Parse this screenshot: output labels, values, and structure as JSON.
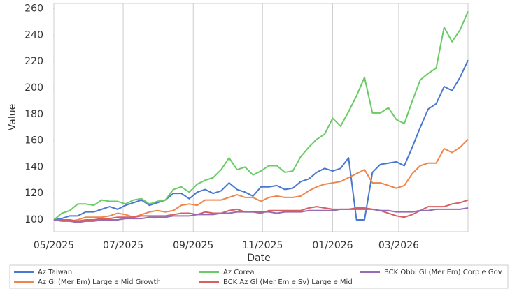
{
  "chart_data": {
    "type": "line",
    "xlabel": "Date",
    "ylabel": "Value",
    "xlim": [
      0,
      52
    ],
    "xticks": [
      {
        "value": 0,
        "label": "05/2025"
      },
      {
        "value": 8.7,
        "label": "07/2025"
      },
      {
        "value": 17.5,
        "label": "09/2025"
      },
      {
        "value": 26.2,
        "label": "11/2025"
      },
      {
        "value": 35,
        "label": "01/2026"
      },
      {
        "value": 43.3,
        "label": "03/2026"
      }
    ],
    "ylim": [
      91,
      264
    ],
    "yticks": [
      100,
      120,
      140,
      160,
      180,
      200,
      220,
      240,
      260
    ],
    "grid": "x",
    "legend": "bottom",
    "series": [
      {
        "name": "Az Taiwan",
        "color": "#4878d0",
        "values": [
          100,
          101,
          103,
          103,
          106,
          106,
          108,
          110,
          108,
          111,
          113,
          115,
          111,
          113,
          115,
          120,
          120,
          116,
          121,
          123,
          120,
          122,
          128,
          123,
          121,
          118,
          125,
          125,
          126,
          123,
          124,
          129,
          131,
          136,
          139,
          137,
          139,
          147,
          100,
          100,
          136,
          142,
          143,
          144,
          141,
          155,
          170,
          184,
          188,
          201,
          198,
          208,
          221
        ]
      },
      {
        "name": "Az Gl (Mer Em) Large e Mid Growth",
        "color": "#ee854a",
        "values": [
          100,
          100,
          99,
          100,
          102,
          102,
          102,
          103,
          105,
          104,
          102,
          104,
          106,
          107,
          106,
          107,
          111,
          112,
          111,
          115,
          115,
          115,
          117,
          119,
          117,
          117,
          114,
          117,
          118,
          117,
          117,
          118,
          122,
          125,
          127,
          128,
          129,
          132,
          135,
          138,
          128,
          128,
          126,
          124,
          126,
          135,
          141,
          143,
          143,
          154,
          151,
          155,
          161
        ]
      },
      {
        "name": "Az Corea",
        "color": "#6acc64",
        "values": [
          100,
          105,
          107,
          112,
          112,
          111,
          115,
          114,
          114,
          112,
          115,
          116,
          112,
          114,
          115,
          123,
          125,
          121,
          127,
          130,
          132,
          138,
          147,
          138,
          140,
          134,
          137,
          141,
          141,
          136,
          137,
          148,
          155,
          161,
          165,
          177,
          171,
          182,
          194,
          208,
          181,
          181,
          185,
          176,
          173,
          190,
          206,
          211,
          215,
          246,
          235,
          244,
          258
        ]
      },
      {
        "name": "BCK Az Gl (Mer Em e Sv) Large e Mid",
        "color": "#d65f5f",
        "values": [
          100,
          100,
          100,
          99,
          100,
          100,
          101,
          101,
          102,
          102,
          102,
          103,
          103,
          103,
          103,
          104,
          105,
          105,
          104,
          106,
          105,
          105,
          107,
          108,
          106,
          106,
          105,
          107,
          107,
          107,
          107,
          107,
          109,
          110,
          109,
          108,
          108,
          108,
          109,
          109,
          108,
          107,
          105,
          103,
          102,
          104,
          107,
          110,
          110,
          110,
          112,
          113,
          115
        ]
      },
      {
        "name": "BCK Obbl Gl (Mer Em) Corp e Gov",
        "color": "#956cb4",
        "values": [
          100,
          99,
          99,
          98,
          99,
          99,
          100,
          100,
          100,
          101,
          101,
          101,
          102,
          102,
          102,
          103,
          103,
          103,
          104,
          104,
          104,
          105,
          105,
          106,
          106,
          106,
          106,
          106,
          105,
          106,
          106,
          106,
          107,
          107,
          107,
          107,
          108,
          108,
          108,
          108,
          108,
          107,
          107,
          106,
          106,
          106,
          107,
          107,
          108,
          108,
          108,
          108,
          109
        ]
      }
    ]
  }
}
